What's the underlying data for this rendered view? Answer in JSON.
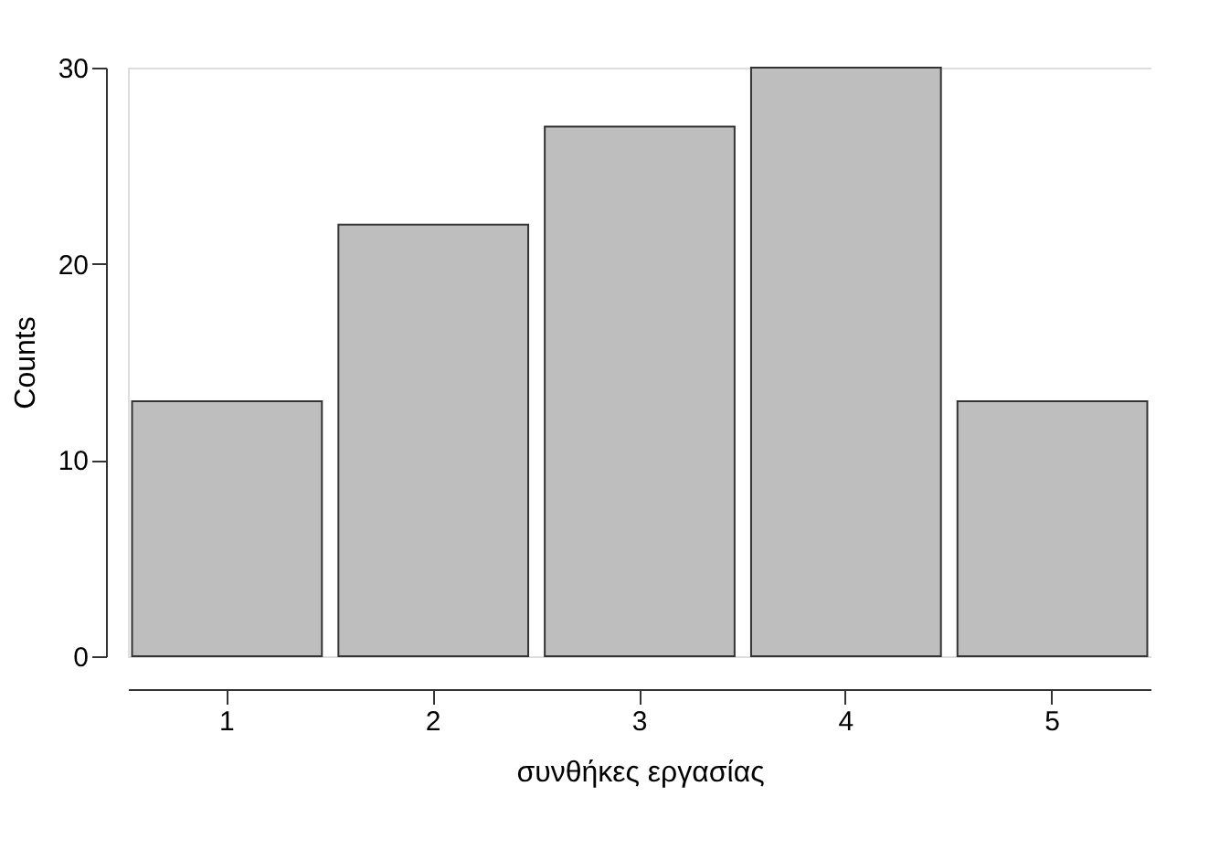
{
  "chart_data": {
    "type": "bar",
    "xlabel": "συνθήκες εργασίας",
    "ylabel": "Counts",
    "categories": [
      "1",
      "2",
      "3",
      "4",
      "5"
    ],
    "values": [
      13,
      22,
      27,
      30,
      13
    ],
    "color": "#bebebe",
    "ylim": [
      0,
      30
    ],
    "yticks": [
      0,
      10,
      20,
      30
    ],
    "grid": false
  }
}
